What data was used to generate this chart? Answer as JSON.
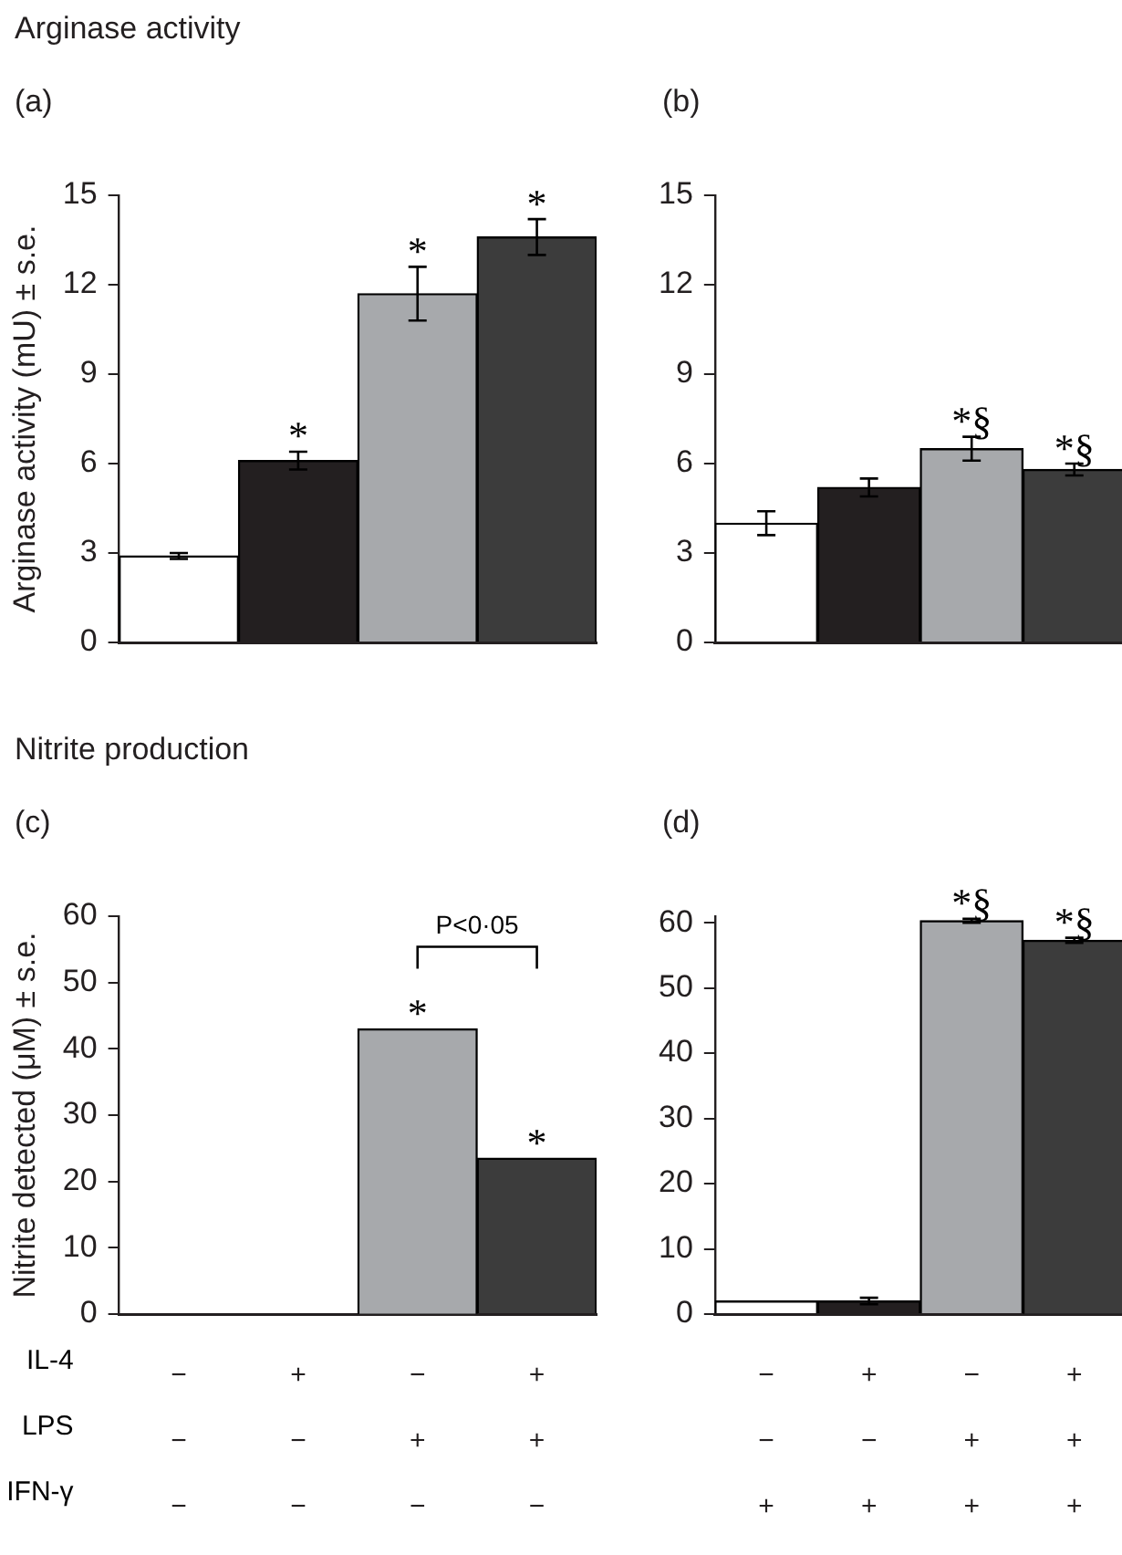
{
  "chart_data": [
    {
      "type": "bar",
      "title": "Arginase activity",
      "subtitle": "(a)",
      "ylabel": "Arginase activity (mU) ± s.e.",
      "categories": [
        null,
        null,
        null,
        null
      ],
      "values": [
        2.9,
        6.1,
        11.7,
        13.6
      ],
      "errors": [
        0.1,
        0.3,
        0.9,
        0.6
      ],
      "value_labels": [
        null,
        "*",
        "*",
        "*"
      ],
      "colors": [
        "#ffffff",
        "#231f20",
        "#a7a9ac",
        "#3c3c3c"
      ],
      "ylim": [
        0,
        15
      ],
      "yticks": [
        0,
        3,
        6,
        9,
        12,
        15
      ],
      "tick_labels": "y"
    },
    {
      "type": "bar",
      "subtitle": "(b)",
      "categories": [
        null,
        null,
        null,
        null
      ],
      "values": [
        4.0,
        5.2,
        6.5,
        5.8
      ],
      "errors": [
        0.4,
        0.3,
        0.4,
        0.2
      ],
      "value_labels": [
        null,
        null,
        "*§",
        "*§"
      ],
      "colors": [
        "#ffffff",
        "#231f20",
        "#a7a9ac",
        "#3c3c3c"
      ],
      "ylim": [
        0,
        15
      ],
      "yticks": [
        0,
        3,
        6,
        9,
        12,
        15
      ],
      "tick_labels": "y"
    },
    {
      "type": "bar",
      "title": "Nitrite production",
      "subtitle": "(c)",
      "ylabel": "Nitrite detected (μM) ± s.e.",
      "categories": [
        "−\n−\n−",
        "+\n−\n−",
        "−\n+\n−",
        "+\n+\n−"
      ],
      "values": [
        0,
        0,
        43,
        23.5
      ],
      "value_labels": [
        null,
        null,
        "*",
        "*"
      ],
      "colors": [
        "#ffffff",
        "#231f20",
        "#a7a9ac",
        "#3c3c3c"
      ],
      "ylim": [
        0,
        60
      ],
      "yticks": [
        0,
        10,
        20,
        30,
        40,
        50,
        60
      ],
      "annotations": [
        "P<0·05",
        "IL-4",
        "LPS",
        "IFN-γ"
      ]
    },
    {
      "type": "bar",
      "subtitle": "(d)",
      "categories": [
        "−\n−\n+",
        "+\n−\n+",
        "−\n+\n+",
        "+\n+\n+"
      ],
      "values": [
        2,
        2,
        60.3,
        57.3
      ],
      "errors": [
        null,
        0.5,
        0.3,
        0.4
      ],
      "value_labels": [
        null,
        null,
        "*§",
        "*§"
      ],
      "colors": [
        "#ffffff",
        "#231f20",
        "#a7a9ac",
        "#3c3c3c"
      ],
      "ylim": [
        0,
        61
      ],
      "yticks": [
        0,
        10,
        20,
        30,
        40,
        50,
        60
      ]
    }
  ]
}
